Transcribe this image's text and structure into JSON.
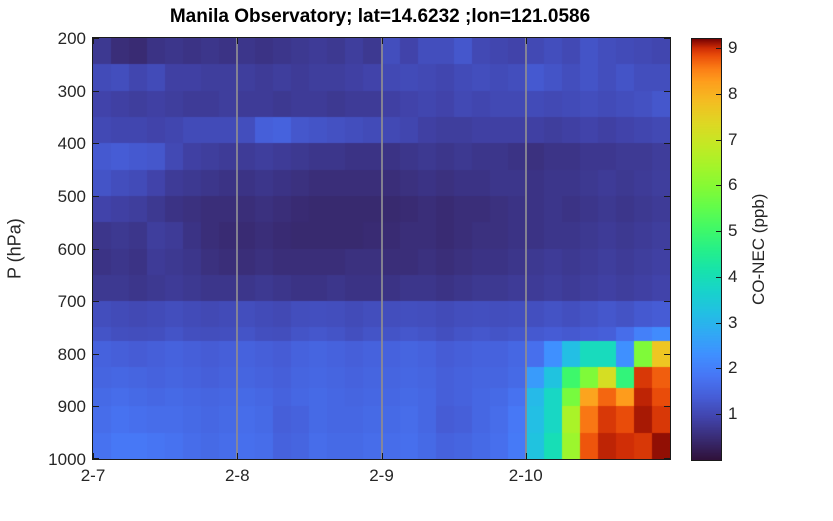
{
  "title": "Manila Observatory; lat=14.6232 ;lon=121.0586",
  "axes": {
    "x": {
      "tick_labels": [
        "2-7",
        "2-8",
        "2-9",
        "2-10"
      ],
      "tick_cols": [
        0,
        8,
        16,
        24
      ],
      "gridline_cols": [
        8,
        16,
        24
      ],
      "gridline_color": "#8c8a94"
    },
    "y": {
      "label": "P (hPa)",
      "tick_labels": [
        "200",
        "300",
        "400",
        "500",
        "600",
        "700",
        "800",
        "900",
        "1000"
      ],
      "tick_values": [
        200,
        300,
        400,
        500,
        600,
        700,
        800,
        900,
        1000
      ],
      "range": [
        200,
        1000
      ]
    }
  },
  "colorbar": {
    "label": "CO-NEC (ppb)",
    "tick_labels": [
      "1",
      "2",
      "3",
      "4",
      "5",
      "6",
      "7",
      "8",
      "9"
    ],
    "tick_values": [
      1,
      2,
      3,
      4,
      5,
      6,
      7,
      8,
      9
    ],
    "range": [
      0,
      9.2
    ]
  },
  "colors": {
    "axis": "#1a1a1a",
    "text": "#262626",
    "background": "#ffffff"
  },
  "chart_data": {
    "type": "heatmap",
    "title": "Manila Observatory; lat=14.6232 ;lon=121.0586",
    "xlabel": "",
    "ylabel": "P (hPa)",
    "value_label": "CO-NEC (ppb)",
    "x_tick_labels": [
      "2-7",
      "2-8",
      "2-9",
      "2-10"
    ],
    "x_tick_cols": [
      0,
      8,
      16,
      24
    ],
    "x_columns": 32,
    "x_hours_per_column": 3,
    "y_axis_inverted_pressure": true,
    "ylim": [
      200,
      1000
    ],
    "clim": [
      0,
      9.2
    ],
    "colormap": "turbo",
    "grid": "vertical-day-lines",
    "legend_position": "right-colorbar",
    "pressure_edges_hPa": [
      200,
      250,
      300,
      350,
      400,
      450,
      500,
      550,
      600,
      650,
      700,
      750,
      775,
      825,
      865,
      900,
      950,
      1000
    ],
    "values_ppb": [
      [
        0.7,
        0.5,
        0.45,
        0.6,
        0.65,
        0.6,
        0.65,
        0.6,
        0.65,
        0.6,
        0.65,
        0.7,
        0.75,
        0.7,
        0.8,
        0.7,
        1.1,
        0.9,
        1.1,
        1.1,
        1.25,
        1.0,
        0.95,
        0.9,
        1.0,
        1.1,
        1.0,
        1.2,
        1.1,
        1.05,
        1.0,
        0.95
      ],
      [
        1.05,
        1.1,
        0.95,
        1.05,
        0.85,
        0.85,
        0.8,
        0.8,
        0.8,
        0.75,
        0.8,
        0.75,
        0.8,
        0.8,
        0.85,
        0.9,
        1.0,
        1.05,
        1.0,
        0.95,
        1.05,
        1.1,
        1.05,
        1.1,
        1.3,
        1.2,
        1.1,
        1.2,
        1.1,
        1.2,
        1.1,
        1.1
      ],
      [
        0.9,
        0.85,
        0.8,
        0.85,
        0.8,
        0.75,
        0.75,
        0.8,
        0.75,
        0.75,
        0.7,
        0.75,
        0.75,
        0.7,
        0.75,
        0.75,
        0.85,
        0.9,
        0.95,
        0.9,
        1.0,
        0.95,
        1.0,
        1.0,
        1.05,
        1.0,
        1.05,
        1.1,
        1.05,
        1.1,
        1.15,
        1.25
      ],
      [
        1.0,
        0.95,
        0.95,
        0.9,
        0.95,
        1.05,
        1.05,
        1.05,
        1.1,
        1.4,
        1.45,
        1.25,
        1.2,
        1.15,
        1.1,
        1.05,
        1.0,
        0.95,
        0.85,
        0.8,
        0.8,
        0.85,
        0.85,
        0.85,
        0.85,
        0.8,
        0.85,
        0.9,
        0.85,
        0.9,
        0.95,
        1.0
      ],
      [
        1.3,
        1.35,
        1.3,
        1.25,
        1.0,
        0.85,
        0.8,
        0.75,
        0.75,
        0.8,
        0.75,
        0.7,
        0.65,
        0.65,
        0.6,
        0.6,
        0.6,
        0.65,
        0.7,
        0.65,
        0.7,
        0.65,
        0.65,
        0.6,
        0.55,
        0.62,
        0.62,
        0.68,
        0.68,
        0.72,
        0.72,
        0.78
      ],
      [
        1.2,
        1.1,
        1.05,
        0.9,
        0.75,
        0.7,
        0.65,
        0.6,
        0.6,
        0.65,
        0.6,
        0.55,
        0.5,
        0.5,
        0.5,
        0.5,
        0.5,
        0.55,
        0.6,
        0.55,
        0.6,
        0.6,
        0.65,
        0.65,
        0.6,
        0.65,
        0.65,
        0.7,
        0.75,
        0.7,
        0.75,
        0.8
      ],
      [
        0.9,
        0.85,
        0.8,
        0.7,
        0.6,
        0.55,
        0.5,
        0.5,
        0.5,
        0.55,
        0.5,
        0.45,
        0.42,
        0.42,
        0.42,
        0.42,
        0.42,
        0.45,
        0.5,
        0.45,
        0.5,
        0.5,
        0.55,
        0.6,
        0.6,
        0.65,
        0.6,
        0.65,
        0.7,
        0.65,
        0.7,
        0.75
      ],
      [
        0.65,
        0.7,
        0.65,
        0.8,
        0.75,
        0.6,
        0.5,
        0.45,
        0.45,
        0.5,
        0.45,
        0.42,
        0.42,
        0.42,
        0.42,
        0.45,
        0.45,
        0.5,
        0.5,
        0.45,
        0.5,
        0.55,
        0.55,
        0.6,
        0.6,
        0.65,
        0.65,
        0.7,
        0.75,
        0.7,
        0.75,
        0.8
      ],
      [
        0.6,
        0.65,
        0.6,
        0.75,
        0.7,
        0.65,
        0.55,
        0.5,
        0.5,
        0.55,
        0.5,
        0.5,
        0.5,
        0.5,
        0.55,
        0.55,
        0.5,
        0.5,
        0.55,
        0.5,
        0.55,
        0.6,
        0.6,
        0.65,
        0.7,
        0.75,
        0.7,
        0.75,
        0.8,
        0.75,
        0.8,
        0.85
      ],
      [
        0.7,
        0.7,
        0.65,
        0.7,
        0.75,
        0.7,
        0.65,
        0.65,
        0.65,
        0.7,
        0.65,
        0.6,
        0.6,
        0.65,
        0.6,
        0.6,
        0.6,
        0.65,
        0.65,
        0.6,
        0.65,
        0.7,
        0.7,
        0.75,
        0.75,
        0.8,
        0.75,
        0.8,
        0.85,
        0.8,
        0.85,
        0.9
      ],
      [
        1.1,
        1.05,
        1.0,
        1.05,
        1.1,
        1.05,
        1.0,
        1.05,
        1.1,
        1.05,
        1.0,
        1.1,
        1.12,
        1.1,
        1.05,
        1.1,
        1.1,
        1.12,
        1.1,
        1.05,
        1.1,
        1.12,
        1.1,
        1.12,
        1.12,
        1.18,
        1.12,
        1.18,
        1.25,
        1.18,
        1.3,
        1.35
      ],
      [
        1.2,
        1.12,
        1.1,
        1.12,
        1.2,
        1.12,
        1.1,
        1.12,
        1.2,
        1.12,
        1.1,
        1.2,
        1.25,
        1.2,
        1.12,
        1.2,
        1.2,
        1.25,
        1.2,
        1.12,
        1.2,
        1.25,
        1.2,
        1.25,
        1.3,
        1.35,
        1.3,
        1.35,
        1.4,
        1.65,
        2.0,
        2.2
      ],
      [
        1.45,
        1.4,
        1.35,
        1.4,
        1.45,
        1.4,
        1.35,
        1.4,
        1.45,
        1.4,
        1.35,
        1.45,
        1.5,
        1.45,
        1.4,
        1.45,
        1.45,
        1.5,
        1.45,
        1.35,
        1.4,
        1.45,
        1.45,
        1.55,
        1.7,
        2.3,
        3.2,
        3.9,
        3.9,
        2.3,
        5.9,
        7.7
      ],
      [
        1.5,
        1.55,
        1.5,
        1.45,
        1.5,
        1.45,
        1.4,
        1.45,
        1.5,
        1.45,
        1.4,
        1.5,
        1.55,
        1.5,
        1.45,
        1.5,
        1.5,
        1.55,
        1.5,
        1.4,
        1.45,
        1.5,
        1.5,
        1.6,
        2.5,
        3.3,
        5.0,
        5.9,
        7.2,
        4.8,
        8.95,
        8.75
      ],
      [
        1.6,
        1.65,
        1.6,
        1.55,
        1.6,
        1.55,
        1.5,
        1.55,
        1.6,
        1.55,
        1.45,
        1.55,
        1.6,
        1.55,
        1.5,
        1.55,
        1.55,
        1.6,
        1.55,
        1.4,
        1.45,
        1.55,
        1.6,
        1.75,
        3.1,
        3.8,
        5.8,
        8.2,
        8.7,
        8.3,
        9.05,
        8.85
      ],
      [
        1.65,
        1.75,
        1.7,
        1.65,
        1.65,
        1.6,
        1.55,
        1.6,
        1.65,
        1.6,
        1.4,
        1.45,
        1.6,
        1.55,
        1.55,
        1.6,
        1.6,
        1.65,
        1.55,
        1.35,
        1.4,
        1.55,
        1.65,
        1.85,
        3.2,
        3.8,
        6.5,
        8.6,
        8.95,
        8.85,
        9.1,
        8.95
      ],
      [
        1.75,
        1.85,
        1.85,
        1.8,
        1.75,
        1.65,
        1.6,
        1.65,
        1.7,
        1.65,
        1.45,
        1.5,
        1.65,
        1.6,
        1.6,
        1.65,
        1.65,
        1.7,
        1.6,
        1.45,
        1.5,
        1.6,
        1.7,
        1.9,
        3.3,
        4.0,
        6.3,
        8.8,
        9.05,
        9.0,
        8.95,
        9.15
      ]
    ],
    "colormap_stops": [
      [
        0.0,
        48,
        18,
        59
      ],
      [
        0.05,
        57,
        44,
        116
      ],
      [
        0.1,
        65,
        68,
        172
      ],
      [
        0.15,
        70,
        94,
        216
      ],
      [
        0.2,
        71,
        119,
        246
      ],
      [
        0.25,
        63,
        144,
        255
      ],
      [
        0.3,
        49,
        169,
        245
      ],
      [
        0.35,
        34,
        192,
        227
      ],
      [
        0.4,
        24,
        211,
        204
      ],
      [
        0.45,
        23,
        227,
        172
      ],
      [
        0.5,
        38,
        240,
        137
      ],
      [
        0.55,
        65,
        249,
        103
      ],
      [
        0.6,
        98,
        252,
        75
      ],
      [
        0.65,
        133,
        250,
        53
      ],
      [
        0.7,
        166,
        244,
        41
      ],
      [
        0.75,
        196,
        233,
        36
      ],
      [
        0.8,
        222,
        216,
        35
      ],
      [
        0.85,
        243,
        191,
        34
      ],
      [
        0.9,
        254,
        158,
        29
      ],
      [
        0.93,
        252,
        126,
        22
      ],
      [
        0.96,
        236,
        80,
        11
      ],
      [
        0.98,
        205,
        43,
        5
      ],
      [
        1.0,
        122,
        4,
        3
      ]
    ]
  }
}
